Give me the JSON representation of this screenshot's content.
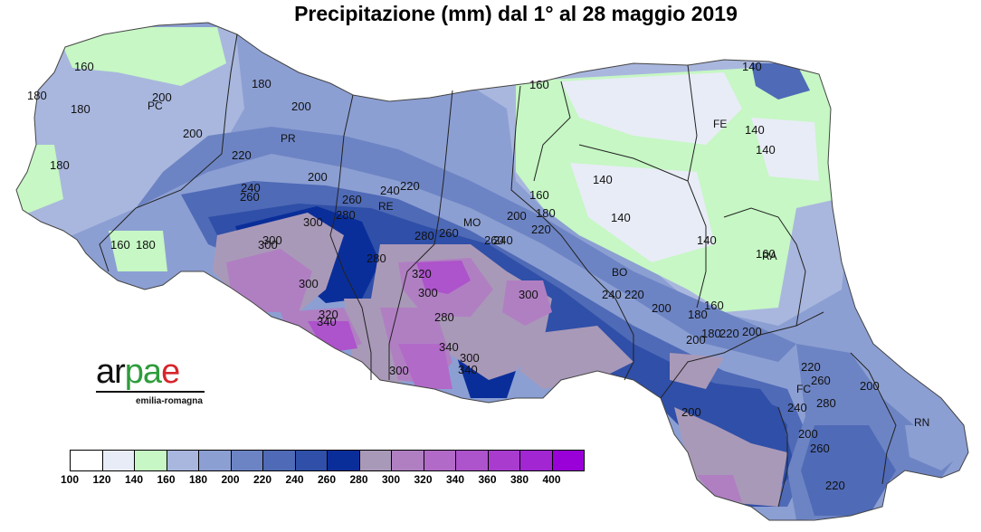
{
  "title": "Precipitazione (mm) dal 1° al 28 maggio 2019",
  "logo": {
    "word_a": "ar",
    "word_p": "pa",
    "word_e": "e",
    "subtitle": "emilia-romagna"
  },
  "legend": {
    "colors": [
      "#ffffff",
      "#e8ecf6",
      "#c6f7c4",
      "#a9b7de",
      "#8c9fd3",
      "#6d84c4",
      "#4f6ab6",
      "#2f4fa8",
      "#0a2e99",
      "#a999b8",
      "#b07fc2",
      "#b26ac8",
      "#ad53cb",
      "#a93ccf",
      "#a226d2",
      "#9a00d8"
    ],
    "tick_labels": [
      "100",
      "120",
      "140",
      "160",
      "180",
      "200",
      "220",
      "240",
      "260",
      "280",
      "300",
      "320",
      "340",
      "360",
      "380",
      "400"
    ]
  },
  "provinces": [
    "PC",
    "PR",
    "RE",
    "MO",
    "BO",
    "FE",
    "RA",
    "FC",
    "RN"
  ],
  "contour_labels": [
    "160",
    "180",
    "180",
    "200",
    "180",
    "200",
    "200",
    "180",
    "200",
    "220",
    "240",
    "260",
    "280",
    "300",
    "300",
    "280",
    "260",
    "240",
    "220",
    "180",
    "160",
    "140",
    "140",
    "140",
    "140",
    "140",
    "140",
    "160",
    "160",
    "160",
    "180",
    "200",
    "220",
    "240",
    "260",
    "280",
    "300",
    "320",
    "300",
    "320",
    "340",
    "300",
    "300",
    "340",
    "300",
    "340",
    "280",
    "260",
    "240",
    "220",
    "200",
    "180",
    "160",
    "180",
    "200",
    "220",
    "200",
    "220",
    "240",
    "260",
    "280",
    "260",
    "200",
    "200",
    "220",
    "200",
    "300"
  ]
}
